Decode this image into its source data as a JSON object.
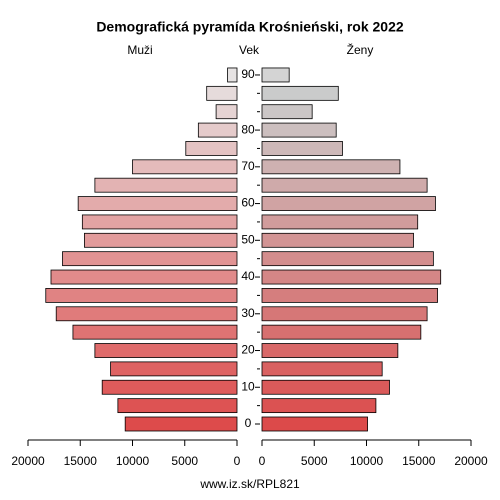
{
  "chart_data": {
    "type": "pyramid",
    "title": "Demografická pyramída Krośnieński, rok 2022",
    "y_label": "Vek",
    "source": "www.iz.sk/RPL821",
    "categories": [
      "0",
      null,
      "10",
      null,
      "20",
      null,
      "30",
      null,
      "40",
      null,
      "50",
      null,
      "60",
      null,
      "70",
      null,
      "80",
      null,
      null,
      "90"
    ],
    "series": [
      {
        "name": "Muži",
        "side": "left",
        "values": [
          10700,
          11400,
          12900,
          12100,
          13600,
          15700,
          17300,
          18300,
          17800,
          16700,
          14600,
          14800,
          15200,
          13600,
          10000,
          4900,
          3700,
          2000,
          2900,
          900
        ],
        "colors": [
          "#dd4b4b",
          "#dd5353",
          "#de5b5b",
          "#de6363",
          "#df6b6b",
          "#df7373",
          "#e07b7b",
          "#e08383",
          "#e18b8b",
          "#e19393",
          "#e29b9b",
          "#e2a3a3",
          "#e3abab",
          "#e3b3b3",
          "#e4bbbb",
          "#e4c3c3",
          "#e5cbcb",
          "#e5d3d3",
          "#e6dbdb",
          "#e6e3e3"
        ]
      },
      {
        "name": "Ženy",
        "side": "right",
        "values": [
          10100,
          10900,
          12200,
          11500,
          13000,
          15200,
          15800,
          16800,
          17100,
          16400,
          14500,
          14900,
          16600,
          15800,
          13200,
          7700,
          7100,
          4800,
          7300,
          2600
        ],
        "colors": [
          "#dc4a4a",
          "#db5252",
          "#da5a5a",
          "#d96161",
          "#d86868",
          "#d77070",
          "#d67777",
          "#d57e7e",
          "#d48686",
          "#d38d8d",
          "#d29494",
          "#d19c9c",
          "#d0a3a3",
          "#cfaaaa",
          "#ceb1b1",
          "#cdb8b8",
          "#ccbfbf",
          "#cbc6c6",
          "#cacbcb",
          "#d4d4d4"
        ]
      }
    ],
    "xlim": [
      0,
      20000
    ],
    "xticks": [
      0,
      5000,
      10000,
      15000,
      20000
    ]
  }
}
